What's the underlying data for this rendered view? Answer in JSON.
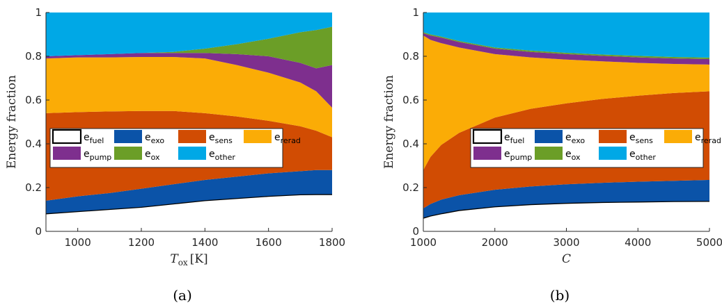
{
  "colors": {
    "e_fuel": "#ffffff",
    "e_exo": "#0b53a8",
    "e_sens": "#d14c03",
    "e_rerad": "#fbac06",
    "e_pump": "#7e2f8e",
    "e_ox": "#6b9e27",
    "e_other": "#00a8e6"
  },
  "legend_order": [
    "e_fuel",
    "e_exo",
    "e_sens",
    "e_rerad",
    "e_pump",
    "e_ox",
    "e_other"
  ],
  "legend_labels": {
    "e_fuel": {
      "base": "e",
      "sub": "fuel"
    },
    "e_exo": {
      "base": "e",
      "sub": "exo"
    },
    "e_sens": {
      "base": "e",
      "sub": "sens"
    },
    "e_rerad": {
      "base": "e",
      "sub": "rerad"
    },
    "e_pump": {
      "base": "e",
      "sub": "pump"
    },
    "e_ox": {
      "base": "e",
      "sub": "ox"
    },
    "e_other": {
      "base": "e",
      "sub": "other"
    }
  },
  "chart_data": [
    {
      "type": "area",
      "stacked": true,
      "caption": "(a)",
      "ylabel": "Energy fraction",
      "xlabel": {
        "base": "T",
        "sub": "ox",
        "unit": "[K]"
      },
      "xlim": [
        900,
        1800
      ],
      "ylim": [
        0,
        1
      ],
      "xticks": [
        1000,
        1200,
        1400,
        1600,
        1800
      ],
      "yticks": [
        0,
        0.2,
        0.4,
        0.6,
        0.8,
        1
      ],
      "grid": false,
      "legend_location": "center-left",
      "x": [
        900,
        1000,
        1100,
        1200,
        1300,
        1400,
        1500,
        1600,
        1700,
        1750,
        1800
      ],
      "cumulative_upper": {
        "e_fuel": [
          0.08,
          0.09,
          0.1,
          0.11,
          0.125,
          0.14,
          0.15,
          0.16,
          0.167,
          0.168,
          0.168
        ],
        "e_exo": [
          0.14,
          0.16,
          0.175,
          0.195,
          0.215,
          0.235,
          0.25,
          0.265,
          0.275,
          0.28,
          0.28
        ],
        "e_sens": [
          0.54,
          0.545,
          0.548,
          0.55,
          0.55,
          0.54,
          0.525,
          0.505,
          0.48,
          0.46,
          0.43
        ],
        "e_rerad": [
          0.79,
          0.795,
          0.795,
          0.797,
          0.797,
          0.79,
          0.76,
          0.725,
          0.68,
          0.64,
          0.565
        ],
        "e_pump": [
          0.8,
          0.805,
          0.81,
          0.815,
          0.815,
          0.815,
          0.81,
          0.8,
          0.77,
          0.745,
          0.76
        ],
        "e_ox": [
          0.8,
          0.805,
          0.81,
          0.815,
          0.82,
          0.835,
          0.855,
          0.88,
          0.91,
          0.92,
          0.935
        ],
        "e_other": [
          1,
          1,
          1,
          1,
          1,
          1,
          1,
          1,
          1,
          1,
          1
        ]
      }
    },
    {
      "type": "area",
      "stacked": true,
      "caption": "(b)",
      "ylabel": "Energy fraction",
      "xlabel": {
        "base": "C",
        "sub": "",
        "unit": ""
      },
      "xlim": [
        1000,
        5000
      ],
      "ylim": [
        0,
        1
      ],
      "xticks": [
        1000,
        2000,
        3000,
        4000,
        5000
      ],
      "yticks": [
        0,
        0.2,
        0.4,
        0.6,
        0.8,
        1
      ],
      "grid": false,
      "legend_location": "center-right",
      "x": [
        1000,
        1100,
        1250,
        1500,
        2000,
        2500,
        3000,
        3500,
        4000,
        4500,
        5000
      ],
      "cumulative_upper": {
        "e_fuel": [
          0.06,
          0.07,
          0.08,
          0.095,
          0.112,
          0.122,
          0.128,
          0.132,
          0.134,
          0.136,
          0.137
        ],
        "e_exo": [
          0.105,
          0.125,
          0.145,
          0.165,
          0.19,
          0.205,
          0.215,
          0.222,
          0.227,
          0.231,
          0.235
        ],
        "e_sens": [
          0.28,
          0.34,
          0.395,
          0.45,
          0.52,
          0.56,
          0.585,
          0.605,
          0.62,
          0.632,
          0.64
        ],
        "e_rerad": [
          0.895,
          0.875,
          0.86,
          0.84,
          0.81,
          0.795,
          0.785,
          0.777,
          0.77,
          0.765,
          0.762
        ],
        "e_pump": [
          0.905,
          0.895,
          0.885,
          0.865,
          0.835,
          0.82,
          0.81,
          0.802,
          0.795,
          0.79,
          0.787
        ],
        "e_ox": [
          0.91,
          0.9,
          0.89,
          0.87,
          0.84,
          0.826,
          0.816,
          0.808,
          0.802,
          0.797,
          0.794
        ],
        "e_other": [
          1,
          1,
          1,
          1,
          1,
          1,
          1,
          1,
          1,
          1,
          1
        ]
      }
    }
  ]
}
